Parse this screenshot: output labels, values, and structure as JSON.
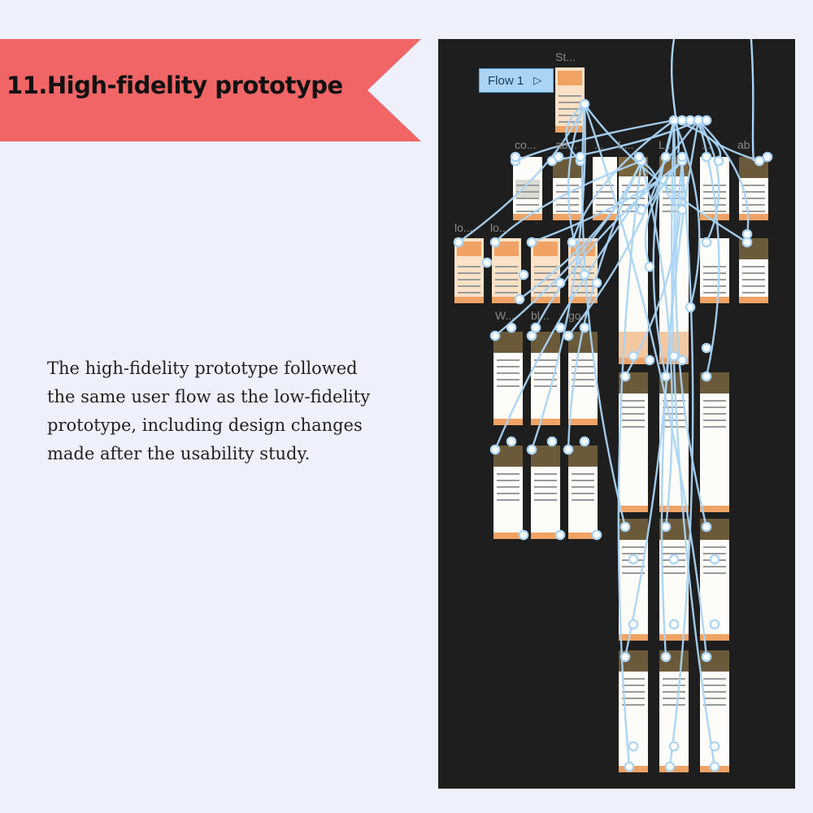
{
  "slide": {
    "title": "11.High-fidelity prototype",
    "description": "The high-fidelity prototype followed the same user flow as the low-fidelity prototype, including design changes made after the usability study."
  },
  "prototype": {
    "flow_label": "Flow 1",
    "play_icon": "play-icon",
    "frame_labels": [
      "St...",
      "co...",
      "ab...",
      "...",
      "L...",
      "L...",
      "...",
      "ab",
      "lo...",
      "lo...",
      "W...",
      "bl...",
      "go..."
    ],
    "colors": {
      "canvas": "#1e1e1e",
      "connector": "#a9d4f5",
      "banner": "#f16566",
      "frame_accent": "#f0a365"
    }
  }
}
